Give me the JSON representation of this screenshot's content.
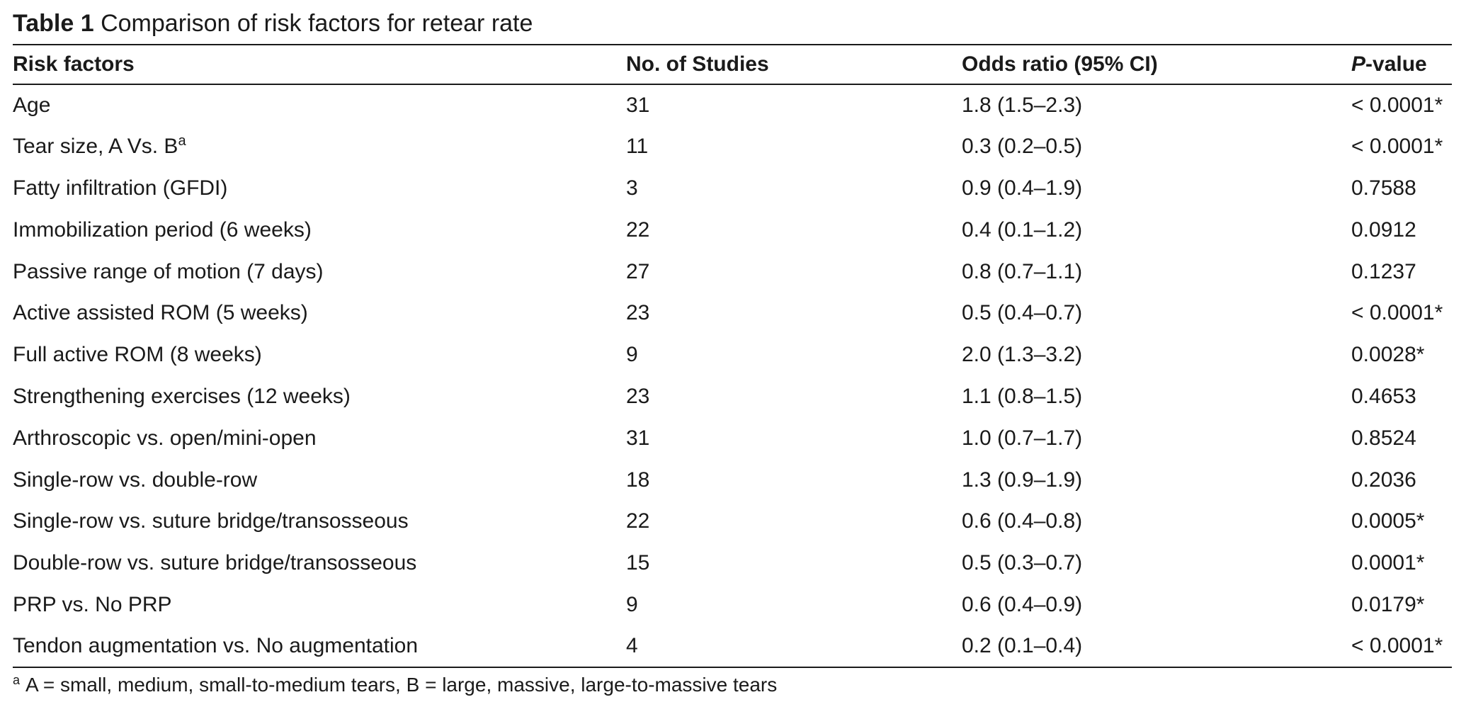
{
  "caption": {
    "label": "Table 1",
    "text": "Comparison of risk factors for retear rate"
  },
  "columns": {
    "risk_factors": "Risk factors",
    "studies": "No. of Studies",
    "odds_ratio": "Odds ratio (95% CI)",
    "p_value_italic": "P",
    "p_value_rest": "-value"
  },
  "rows": [
    {
      "factor": "Age",
      "sup": "",
      "studies": "31",
      "or": "1.8 (1.5–2.3)",
      "p": "< 0.0001*"
    },
    {
      "factor": "Tear size, A Vs. B",
      "sup": "a",
      "studies": "11",
      "or": "0.3 (0.2–0.5)",
      "p": "< 0.0001*"
    },
    {
      "factor": "Fatty infiltration (GFDI)",
      "sup": "",
      "studies": "3",
      "or": "0.9 (0.4–1.9)",
      "p": "0.7588"
    },
    {
      "factor": "Immobilization period (6 weeks)",
      "sup": "",
      "studies": "22",
      "or": "0.4 (0.1–1.2)",
      "p": "0.0912"
    },
    {
      "factor": "Passive range of motion (7 days)",
      "sup": "",
      "studies": "27",
      "or": "0.8 (0.7–1.1)",
      "p": "0.1237"
    },
    {
      "factor": "Active assisted ROM (5 weeks)",
      "sup": "",
      "studies": "23",
      "or": "0.5 (0.4–0.7)",
      "p": "< 0.0001*"
    },
    {
      "factor": "Full active ROM (8 weeks)",
      "sup": "",
      "studies": "9",
      "or": "2.0 (1.3–3.2)",
      "p": "0.0028*"
    },
    {
      "factor": "Strengthening exercises (12 weeks)",
      "sup": "",
      "studies": "23",
      "or": "1.1 (0.8–1.5)",
      "p": "0.4653"
    },
    {
      "factor": "Arthroscopic vs. open/mini-open",
      "sup": "",
      "studies": "31",
      "or": "1.0 (0.7–1.7)",
      "p": "0.8524"
    },
    {
      "factor": "Single-row vs. double-row",
      "sup": "",
      "studies": "18",
      "or": "1.3 (0.9–1.9)",
      "p": "0.2036"
    },
    {
      "factor": "Single-row vs. suture bridge/transosseous",
      "sup": "",
      "studies": "22",
      "or": "0.6 (0.4–0.8)",
      "p": "0.0005*"
    },
    {
      "factor": "Double-row vs. suture bridge/transosseous",
      "sup": "",
      "studies": "15",
      "or": "0.5 (0.3–0.7)",
      "p": "0.0001*"
    },
    {
      "factor": "PRP vs. No PRP",
      "sup": "",
      "studies": "9",
      "or": "0.6 (0.4–0.9)",
      "p": "0.0179*"
    },
    {
      "factor": "Tendon augmentation vs. No augmentation",
      "sup": "",
      "studies": "4",
      "or": "0.2 (0.1–0.4)",
      "p": "< 0.0001*"
    }
  ],
  "footnote": {
    "marker": "a",
    "text": "A = small, medium, small-to-medium tears, B = large, massive, large-to-massive tears"
  }
}
